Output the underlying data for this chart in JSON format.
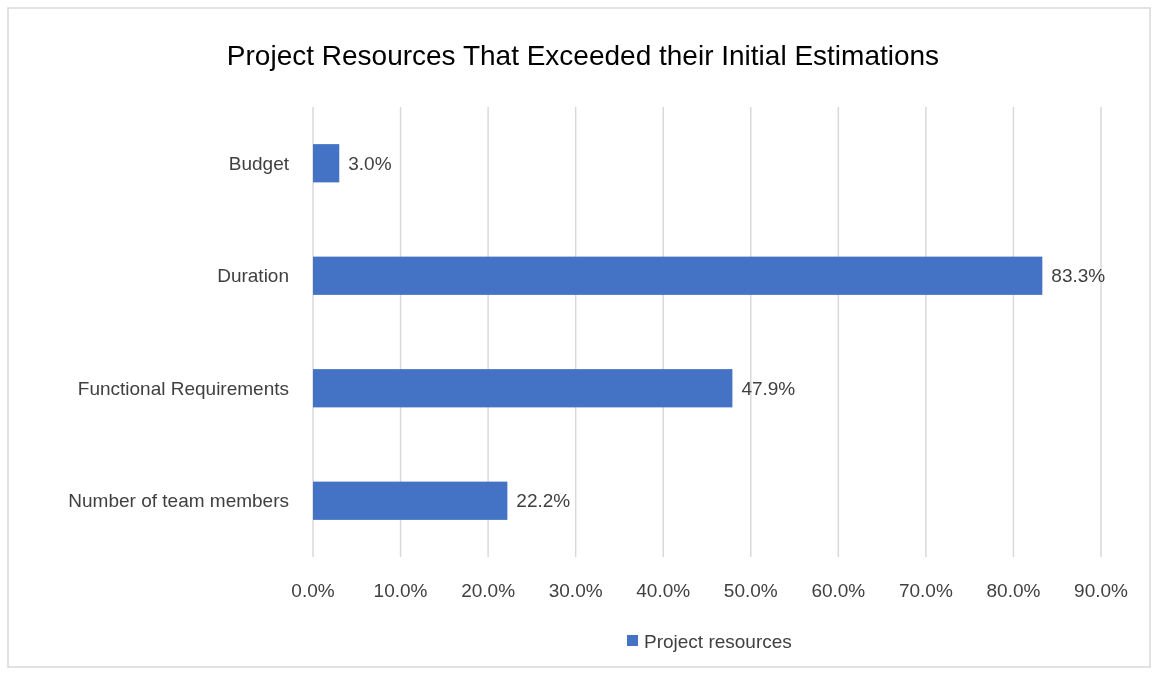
{
  "chart_data": {
    "type": "bar",
    "orientation": "horizontal",
    "title": "Project Resources That Exceeded their Initial Estimations",
    "categories": [
      "Budget",
      "Duration",
      "Functional Requirements",
      "Number of team members"
    ],
    "series": [
      {
        "name": "Project resources",
        "color": "#4472c4",
        "values": [
          3.0,
          83.3,
          47.9,
          22.2
        ],
        "value_labels": [
          "3.0%",
          "83.3%",
          "47.9%",
          "22.2%"
        ]
      }
    ],
    "xlim": [
      0,
      90
    ],
    "xticks": [
      {
        "value": 0,
        "label": "0.0%"
      },
      {
        "value": 10,
        "label": "10.0%"
      },
      {
        "value": 20,
        "label": "20.0%"
      },
      {
        "value": 30,
        "label": "30.0%"
      },
      {
        "value": 40,
        "label": "40.0%"
      },
      {
        "value": 50,
        "label": "50.0%"
      },
      {
        "value": 60,
        "label": "60.0%"
      },
      {
        "value": 70,
        "label": "70.0%"
      },
      {
        "value": 80,
        "label": "80.0%"
      },
      {
        "value": 90,
        "label": "90.0%"
      }
    ],
    "grid": "x",
    "legend": "bottom"
  }
}
